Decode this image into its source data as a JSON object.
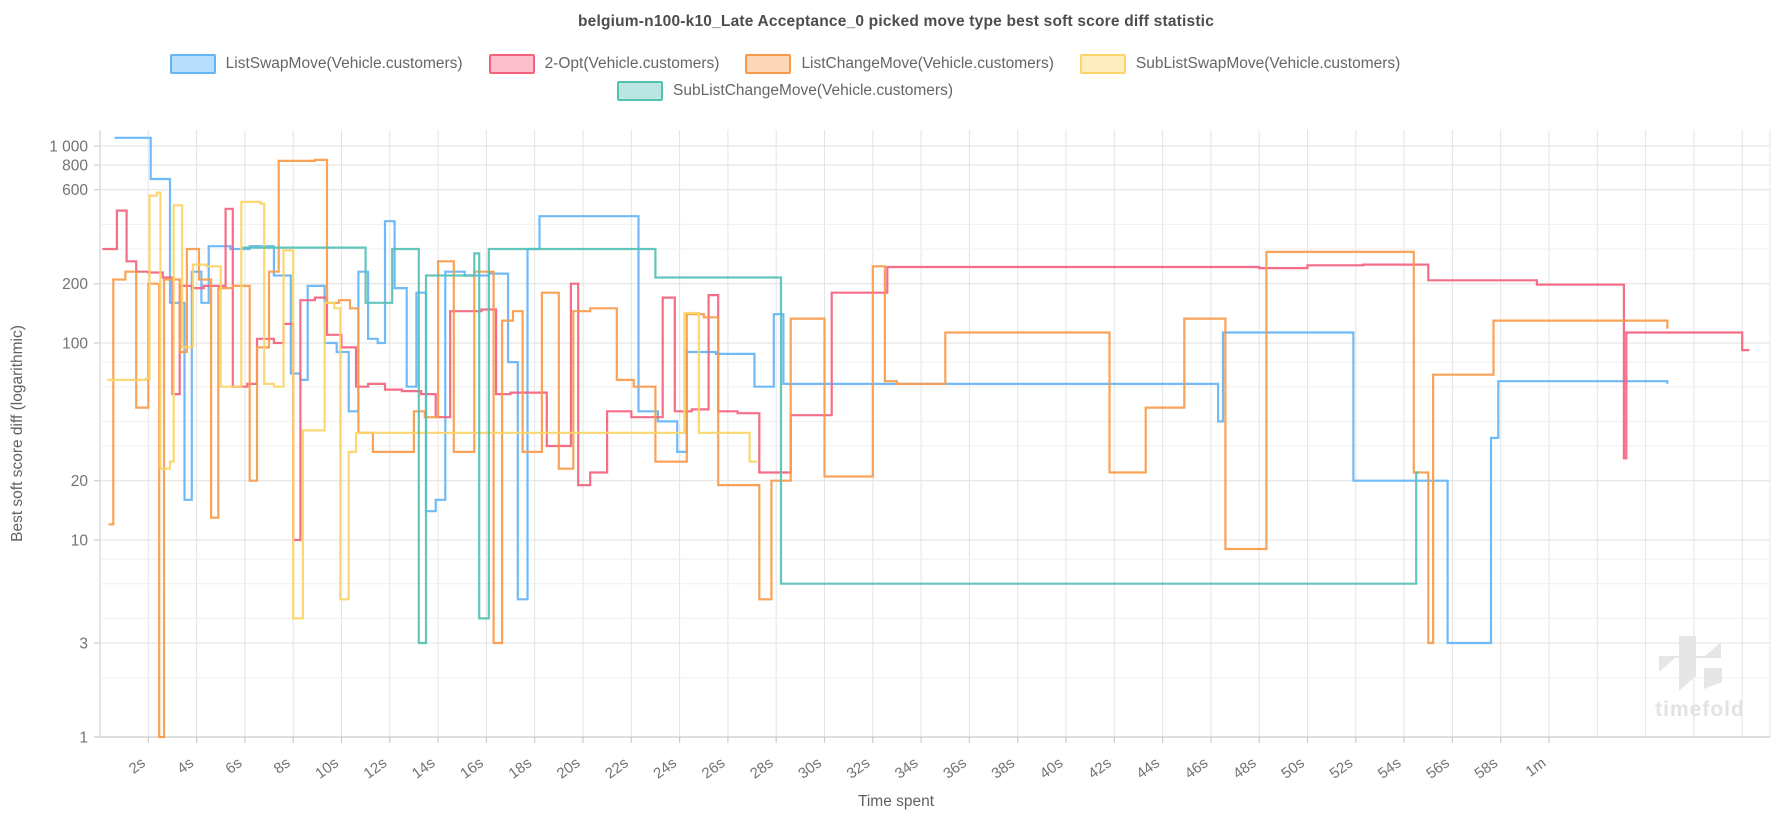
{
  "title": "belgium-n100-k10_Late Acceptance_0 picked move type best soft score diff statistic",
  "watermark": "timefold",
  "chart_data": {
    "type": "line",
    "step": "after",
    "title": "belgium-n100-k10_Late Acceptance_0 picked move type best soft score diff statistic",
    "xlabel": "Time spent",
    "ylabel": "Best soft score diff (logarithmic)",
    "x_unit": "seconds",
    "xlim": [
      0,
      69
    ],
    "ylog": true,
    "ylim": [
      1,
      1200
    ],
    "grid": true,
    "legend_position": "top",
    "x_ticks": [
      {
        "t": 2,
        "label": "2s"
      },
      {
        "t": 4,
        "label": "4s"
      },
      {
        "t": 6,
        "label": "6s"
      },
      {
        "t": 8,
        "label": "8s"
      },
      {
        "t": 10,
        "label": "10s"
      },
      {
        "t": 12,
        "label": "12s"
      },
      {
        "t": 14,
        "label": "14s"
      },
      {
        "t": 16,
        "label": "16s"
      },
      {
        "t": 18,
        "label": "18s"
      },
      {
        "t": 20,
        "label": "20s"
      },
      {
        "t": 22,
        "label": "22s"
      },
      {
        "t": 24,
        "label": "24s"
      },
      {
        "t": 26,
        "label": "26s"
      },
      {
        "t": 28,
        "label": "28s"
      },
      {
        "t": 30,
        "label": "30s"
      },
      {
        "t": 32,
        "label": "32s"
      },
      {
        "t": 34,
        "label": "34s"
      },
      {
        "t": 36,
        "label": "36s"
      },
      {
        "t": 38,
        "label": "38s"
      },
      {
        "t": 40,
        "label": "40s"
      },
      {
        "t": 42,
        "label": "42s"
      },
      {
        "t": 44,
        "label": "44s"
      },
      {
        "t": 46,
        "label": "46s"
      },
      {
        "t": 48,
        "label": "48s"
      },
      {
        "t": 50,
        "label": "50s"
      },
      {
        "t": 52,
        "label": "52s"
      },
      {
        "t": 54,
        "label": "54s"
      },
      {
        "t": 56,
        "label": "56s"
      },
      {
        "t": 58,
        "label": "58s"
      },
      {
        "t": 60,
        "label": "1m"
      }
    ],
    "y_ticks_labeled": [
      {
        "v": 1,
        "label": "1"
      },
      {
        "v": 3,
        "label": "3"
      },
      {
        "v": 10,
        "label": "10"
      },
      {
        "v": 20,
        "label": "20"
      },
      {
        "v": 100,
        "label": "100"
      },
      {
        "v": 200,
        "label": "200"
      },
      {
        "v": 600,
        "label": "600"
      },
      {
        "v": 800,
        "label": "800"
      },
      {
        "v": 1000,
        "label": "1 000"
      }
    ],
    "y_grid_minor": [
      2,
      4,
      6,
      8,
      30,
      40,
      60,
      80,
      300,
      400
    ],
    "series": [
      {
        "name": "ListSwapMove(Vehicle.customers)",
        "color": "#64b5f6",
        "fill": "rgba(100,181,246,0.45)",
        "points": [
          [
            0.6,
            1100
          ],
          [
            2.1,
            680
          ],
          [
            2.9,
            160
          ],
          [
            3.5,
            16
          ],
          [
            3.8,
            230
          ],
          [
            4.2,
            160
          ],
          [
            4.5,
            310
          ],
          [
            5.4,
            300
          ],
          [
            6.2,
            310
          ],
          [
            7.2,
            220
          ],
          [
            7.9,
            70
          ],
          [
            8.3,
            65
          ],
          [
            8.6,
            195
          ],
          [
            9.3,
            100
          ],
          [
            9.8,
            90
          ],
          [
            10.3,
            45
          ],
          [
            10.7,
            230
          ],
          [
            11.1,
            105
          ],
          [
            11.5,
            100
          ],
          [
            11.8,
            415
          ],
          [
            12.2,
            190
          ],
          [
            12.7,
            60
          ],
          [
            13.1,
            180
          ],
          [
            13.5,
            14
          ],
          [
            13.9,
            16
          ],
          [
            14.3,
            230
          ],
          [
            15.1,
            220
          ],
          [
            16.1,
            225
          ],
          [
            16.9,
            80
          ],
          [
            17.3,
            5
          ],
          [
            17.7,
            300
          ],
          [
            18.2,
            440
          ],
          [
            22.3,
            45
          ],
          [
            23.1,
            40
          ],
          [
            23.9,
            28
          ],
          [
            24.3,
            90
          ],
          [
            25.5,
            88
          ],
          [
            27.1,
            60
          ],
          [
            27.9,
            140
          ],
          [
            28.3,
            62
          ],
          [
            46.3,
            40
          ],
          [
            46.5,
            113
          ],
          [
            51.9,
            20
          ],
          [
            55.8,
            3
          ],
          [
            57.6,
            33
          ],
          [
            57.9,
            64
          ],
          [
            64.9,
            62
          ]
        ]
      },
      {
        "name": "2-Opt(Vehicle.customers)",
        "color": "#f4627e",
        "fill": "rgba(244,98,126,0.4)",
        "points": [
          [
            0.1,
            300
          ],
          [
            0.7,
            470
          ],
          [
            1.1,
            260
          ],
          [
            1.5,
            230
          ],
          [
            2.0,
            228
          ],
          [
            2.6,
            215
          ],
          [
            3.0,
            55
          ],
          [
            3.3,
            195
          ],
          [
            3.8,
            190
          ],
          [
            4.3,
            195
          ],
          [
            5.2,
            480
          ],
          [
            5.5,
            60
          ],
          [
            6.1,
            62
          ],
          [
            6.5,
            105
          ],
          [
            7.2,
            100
          ],
          [
            7.6,
            125
          ],
          [
            8.0,
            10
          ],
          [
            8.3,
            165
          ],
          [
            8.9,
            170
          ],
          [
            9.4,
            110
          ],
          [
            10.0,
            95
          ],
          [
            10.6,
            60
          ],
          [
            11.1,
            62
          ],
          [
            11.8,
            58
          ],
          [
            12.5,
            57
          ],
          [
            13.3,
            55
          ],
          [
            13.9,
            42
          ],
          [
            14.5,
            145
          ],
          [
            15.8,
            148
          ],
          [
            16.4,
            55
          ],
          [
            17.0,
            56
          ],
          [
            18.5,
            30
          ],
          [
            19.5,
            200
          ],
          [
            19.8,
            19
          ],
          [
            20.3,
            22
          ],
          [
            21.0,
            45
          ],
          [
            22.0,
            42
          ],
          [
            23.3,
            170
          ],
          [
            23.8,
            45
          ],
          [
            24.5,
            46
          ],
          [
            25.2,
            175
          ],
          [
            25.6,
            45
          ],
          [
            26.4,
            44
          ],
          [
            27.3,
            22
          ],
          [
            28.6,
            43
          ],
          [
            30.3,
            180
          ],
          [
            32.6,
            243
          ],
          [
            48.0,
            240
          ],
          [
            50.0,
            248
          ],
          [
            52.3,
            250
          ],
          [
            55.0,
            208
          ],
          [
            59.5,
            198
          ],
          [
            63.1,
            26
          ],
          [
            63.2,
            113
          ],
          [
            68.0,
            92
          ],
          [
            68.3,
            92
          ]
        ]
      },
      {
        "name": "ListChangeMove(Vehicle.customers)",
        "color": "#f89b4b",
        "fill": "rgba(248,155,75,0.4)",
        "points": [
          [
            0.35,
            12
          ],
          [
            0.55,
            210
          ],
          [
            1.05,
            230
          ],
          [
            1.5,
            47
          ],
          [
            2.0,
            200
          ],
          [
            2.45,
            1
          ],
          [
            2.65,
            210
          ],
          [
            3.3,
            90
          ],
          [
            3.6,
            300
          ],
          [
            4.1,
            210
          ],
          [
            4.6,
            13
          ],
          [
            4.9,
            190
          ],
          [
            5.5,
            195
          ],
          [
            6.2,
            20
          ],
          [
            6.5,
            95
          ],
          [
            7.0,
            230
          ],
          [
            7.4,
            840
          ],
          [
            8.9,
            850
          ],
          [
            9.4,
            160
          ],
          [
            9.9,
            165
          ],
          [
            10.35,
            150
          ],
          [
            10.7,
            35
          ],
          [
            11.3,
            28
          ],
          [
            12.3,
            28
          ],
          [
            13.0,
            45
          ],
          [
            13.45,
            42
          ],
          [
            14.0,
            260
          ],
          [
            14.65,
            28
          ],
          [
            15.5,
            230
          ],
          [
            16.3,
            3
          ],
          [
            16.65,
            130
          ],
          [
            17.1,
            145
          ],
          [
            17.5,
            28
          ],
          [
            18.3,
            180
          ],
          [
            19.0,
            23
          ],
          [
            19.6,
            145
          ],
          [
            20.3,
            150
          ],
          [
            21.4,
            65
          ],
          [
            22.1,
            60
          ],
          [
            23.0,
            25
          ],
          [
            24.3,
            140
          ],
          [
            25.0,
            135
          ],
          [
            25.6,
            19
          ],
          [
            27.3,
            5
          ],
          [
            27.8,
            20
          ],
          [
            28.6,
            133
          ],
          [
            30.0,
            21
          ],
          [
            32.0,
            245
          ],
          [
            32.5,
            64
          ],
          [
            33.0,
            62
          ],
          [
            35.0,
            113
          ],
          [
            41.8,
            22
          ],
          [
            43.3,
            47
          ],
          [
            44.9,
            133
          ],
          [
            46.6,
            9
          ],
          [
            48.3,
            290
          ],
          [
            54.4,
            22
          ],
          [
            55.0,
            3
          ],
          [
            55.2,
            69
          ],
          [
            57.7,
            130
          ],
          [
            64.9,
            118
          ]
        ]
      },
      {
        "name": "SubListSwapMove(Vehicle.customers)",
        "color": "#fbd566",
        "fill": "rgba(251,213,102,0.4)",
        "points": [
          [
            0.3,
            65
          ],
          [
            1.9,
            66
          ],
          [
            2.05,
            560
          ],
          [
            2.35,
            580
          ],
          [
            2.5,
            23
          ],
          [
            2.9,
            25
          ],
          [
            3.05,
            500
          ],
          [
            3.4,
            95
          ],
          [
            3.85,
            250
          ],
          [
            4.4,
            245
          ],
          [
            5.0,
            60
          ],
          [
            5.85,
            520
          ],
          [
            6.65,
            510
          ],
          [
            6.8,
            62
          ],
          [
            7.2,
            60
          ],
          [
            7.6,
            295
          ],
          [
            8.0,
            4
          ],
          [
            8.4,
            36
          ],
          [
            9.3,
            160
          ],
          [
            9.7,
            150
          ],
          [
            9.95,
            5
          ],
          [
            10.3,
            28
          ],
          [
            10.6,
            35
          ],
          [
            24.2,
            142
          ],
          [
            24.8,
            35
          ],
          [
            26.9,
            25
          ],
          [
            27.2,
            25
          ]
        ]
      },
      {
        "name": "SubListChangeMove(Vehicle.customers)",
        "color": "#55c1b5",
        "fill": "rgba(85,193,181,0.4)",
        "points": [
          [
            5.9,
            305
          ],
          [
            11.0,
            160
          ],
          [
            12.1,
            300
          ],
          [
            13.2,
            3
          ],
          [
            13.5,
            220
          ],
          [
            15.5,
            285
          ],
          [
            15.7,
            4
          ],
          [
            16.1,
            300
          ],
          [
            23.0,
            215
          ],
          [
            28.2,
            6
          ],
          [
            54.5,
            22
          ],
          [
            54.6,
            22
          ]
        ]
      }
    ]
  }
}
